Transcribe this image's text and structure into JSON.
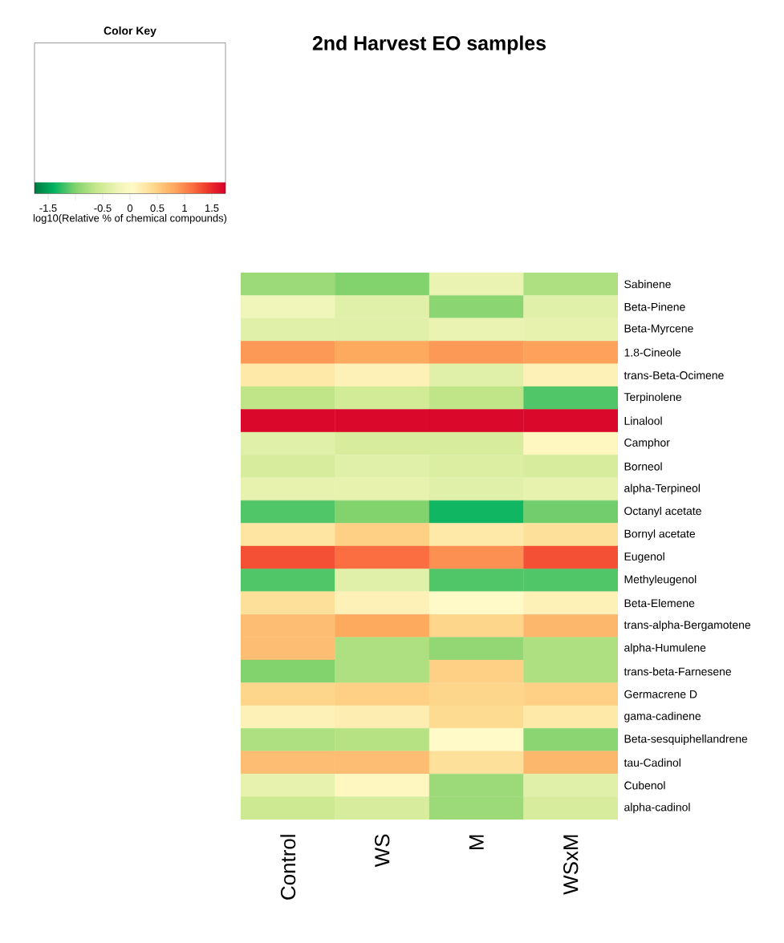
{
  "chart_data": {
    "type": "heatmap",
    "title": "2nd Harvest EO samples",
    "legend_title": "Color Key",
    "clabel": "log10(Relative % of chemical compounds)",
    "categories": [
      "Control",
      "WS",
      "M",
      "WSxM"
    ],
    "y_categories": [
      "Sabinene",
      "Beta-Pinene",
      "Beta-Myrcene",
      "1.8-Cineole",
      "trans-Beta-Ocimene",
      "Terpinolene",
      "Linalool",
      "Camphor",
      "Borneol",
      "alpha-Terpineol",
      "Octanyl acetate",
      "Bornyl acetate",
      "Eugenol",
      "Methyleugenol",
      "Beta-Elemene",
      "trans-alpha-Bergamotene",
      "alpha-Humulene",
      "trans-beta-Farnesene",
      "Germacrene D",
      "gama-cadinene",
      "Beta-sesquiphellandrene",
      "tau-Cadinol",
      "Cubenol",
      "alpha-cadinol"
    ],
    "cells": [
      [
        -0.85,
        -1.0,
        -0.25,
        -0.75
      ],
      [
        -0.2,
        -0.35,
        -0.95,
        -0.35
      ],
      [
        -0.35,
        -0.35,
        -0.25,
        -0.3
      ],
      [
        0.9,
        0.8,
        0.9,
        0.85
      ],
      [
        0.25,
        0.15,
        -0.35,
        0.15
      ],
      [
        -0.65,
        -0.5,
        -0.65,
        -1.15
      ],
      [
        1.7,
        1.7,
        1.7,
        1.7
      ],
      [
        -0.35,
        -0.45,
        -0.45,
        0.1
      ],
      [
        -0.45,
        -0.35,
        -0.4,
        -0.45
      ],
      [
        -0.3,
        -0.3,
        -0.35,
        -0.3
      ],
      [
        -1.15,
        -1.0,
        -1.35,
        -1.05
      ],
      [
        0.3,
        0.5,
        0.25,
        0.35
      ],
      [
        1.3,
        1.15,
        0.95,
        1.3
      ],
      [
        -1.15,
        -0.35,
        -1.15,
        -1.15
      ],
      [
        0.35,
        0.15,
        0.05,
        0.15
      ],
      [
        0.65,
        0.8,
        0.45,
        0.7
      ],
      [
        0.65,
        -0.75,
        -0.9,
        -0.75
      ],
      [
        -1.0,
        -0.75,
        0.5,
        -0.75
      ],
      [
        0.45,
        0.5,
        0.45,
        0.5
      ],
      [
        0.15,
        0.2,
        0.4,
        0.25
      ],
      [
        -0.75,
        -0.7,
        0.05,
        -0.95
      ],
      [
        0.65,
        0.65,
        0.35,
        0.7
      ],
      [
        -0.3,
        0.1,
        -0.85,
        -0.35
      ],
      [
        -0.55,
        -0.45,
        -0.85,
        -0.45
      ]
    ],
    "clim": [
      -1.75,
      1.75
    ],
    "cticks": [
      -1.5,
      {
        "value": -1,
        "label": null
      },
      -0.5,
      0,
      0.5,
      1,
      1.5
    ]
  }
}
